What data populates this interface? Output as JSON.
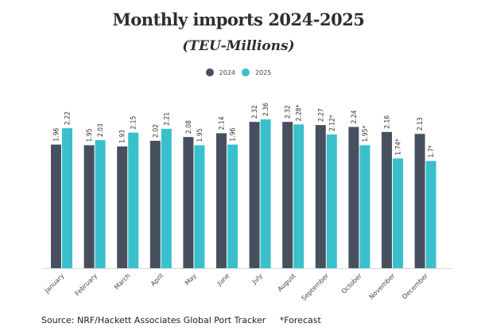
{
  "chart_data": {
    "type": "bar",
    "title": "Monthly imports 2024-2025",
    "subtitle": "(TEU-Millions)",
    "xlabel": "",
    "ylabel": "",
    "ylim": [
      0,
      2.36
    ],
    "grid": false,
    "legend_position": "top-center",
    "categories": [
      "January",
      "February",
      "March",
      "April",
      "May",
      "June",
      "July",
      "August",
      "September",
      "October",
      "November",
      "December"
    ],
    "series": [
      {
        "name": "2024",
        "color": "#46505f",
        "values": [
          1.96,
          1.95,
          1.93,
          2.02,
          2.08,
          2.14,
          2.32,
          2.32,
          2.27,
          2.24,
          2.16,
          2.13
        ],
        "labels": [
          "1.96",
          "1.95",
          "1.93",
          "2.02",
          "2.08",
          "2.14",
          "2.32",
          "2.32",
          "2.27",
          "2.24",
          "2.16",
          "2.13"
        ]
      },
      {
        "name": "2025",
        "color": "#3ac0cd",
        "values": [
          2.22,
          2.03,
          2.15,
          2.21,
          1.95,
          1.96,
          2.36,
          2.28,
          2.12,
          1.95,
          1.74,
          1.7
        ],
        "labels": [
          "2.22",
          "2.03",
          "2.15",
          "2.21",
          "1.95",
          "1.96",
          "2.36",
          "2.28*",
          "2.12*",
          "1.95*",
          "1.74*",
          "1.7*"
        ]
      }
    ]
  },
  "footer": {
    "source": "Source: NRF/Hackett Associates Global Port Tracker",
    "note": "*Forecast"
  }
}
